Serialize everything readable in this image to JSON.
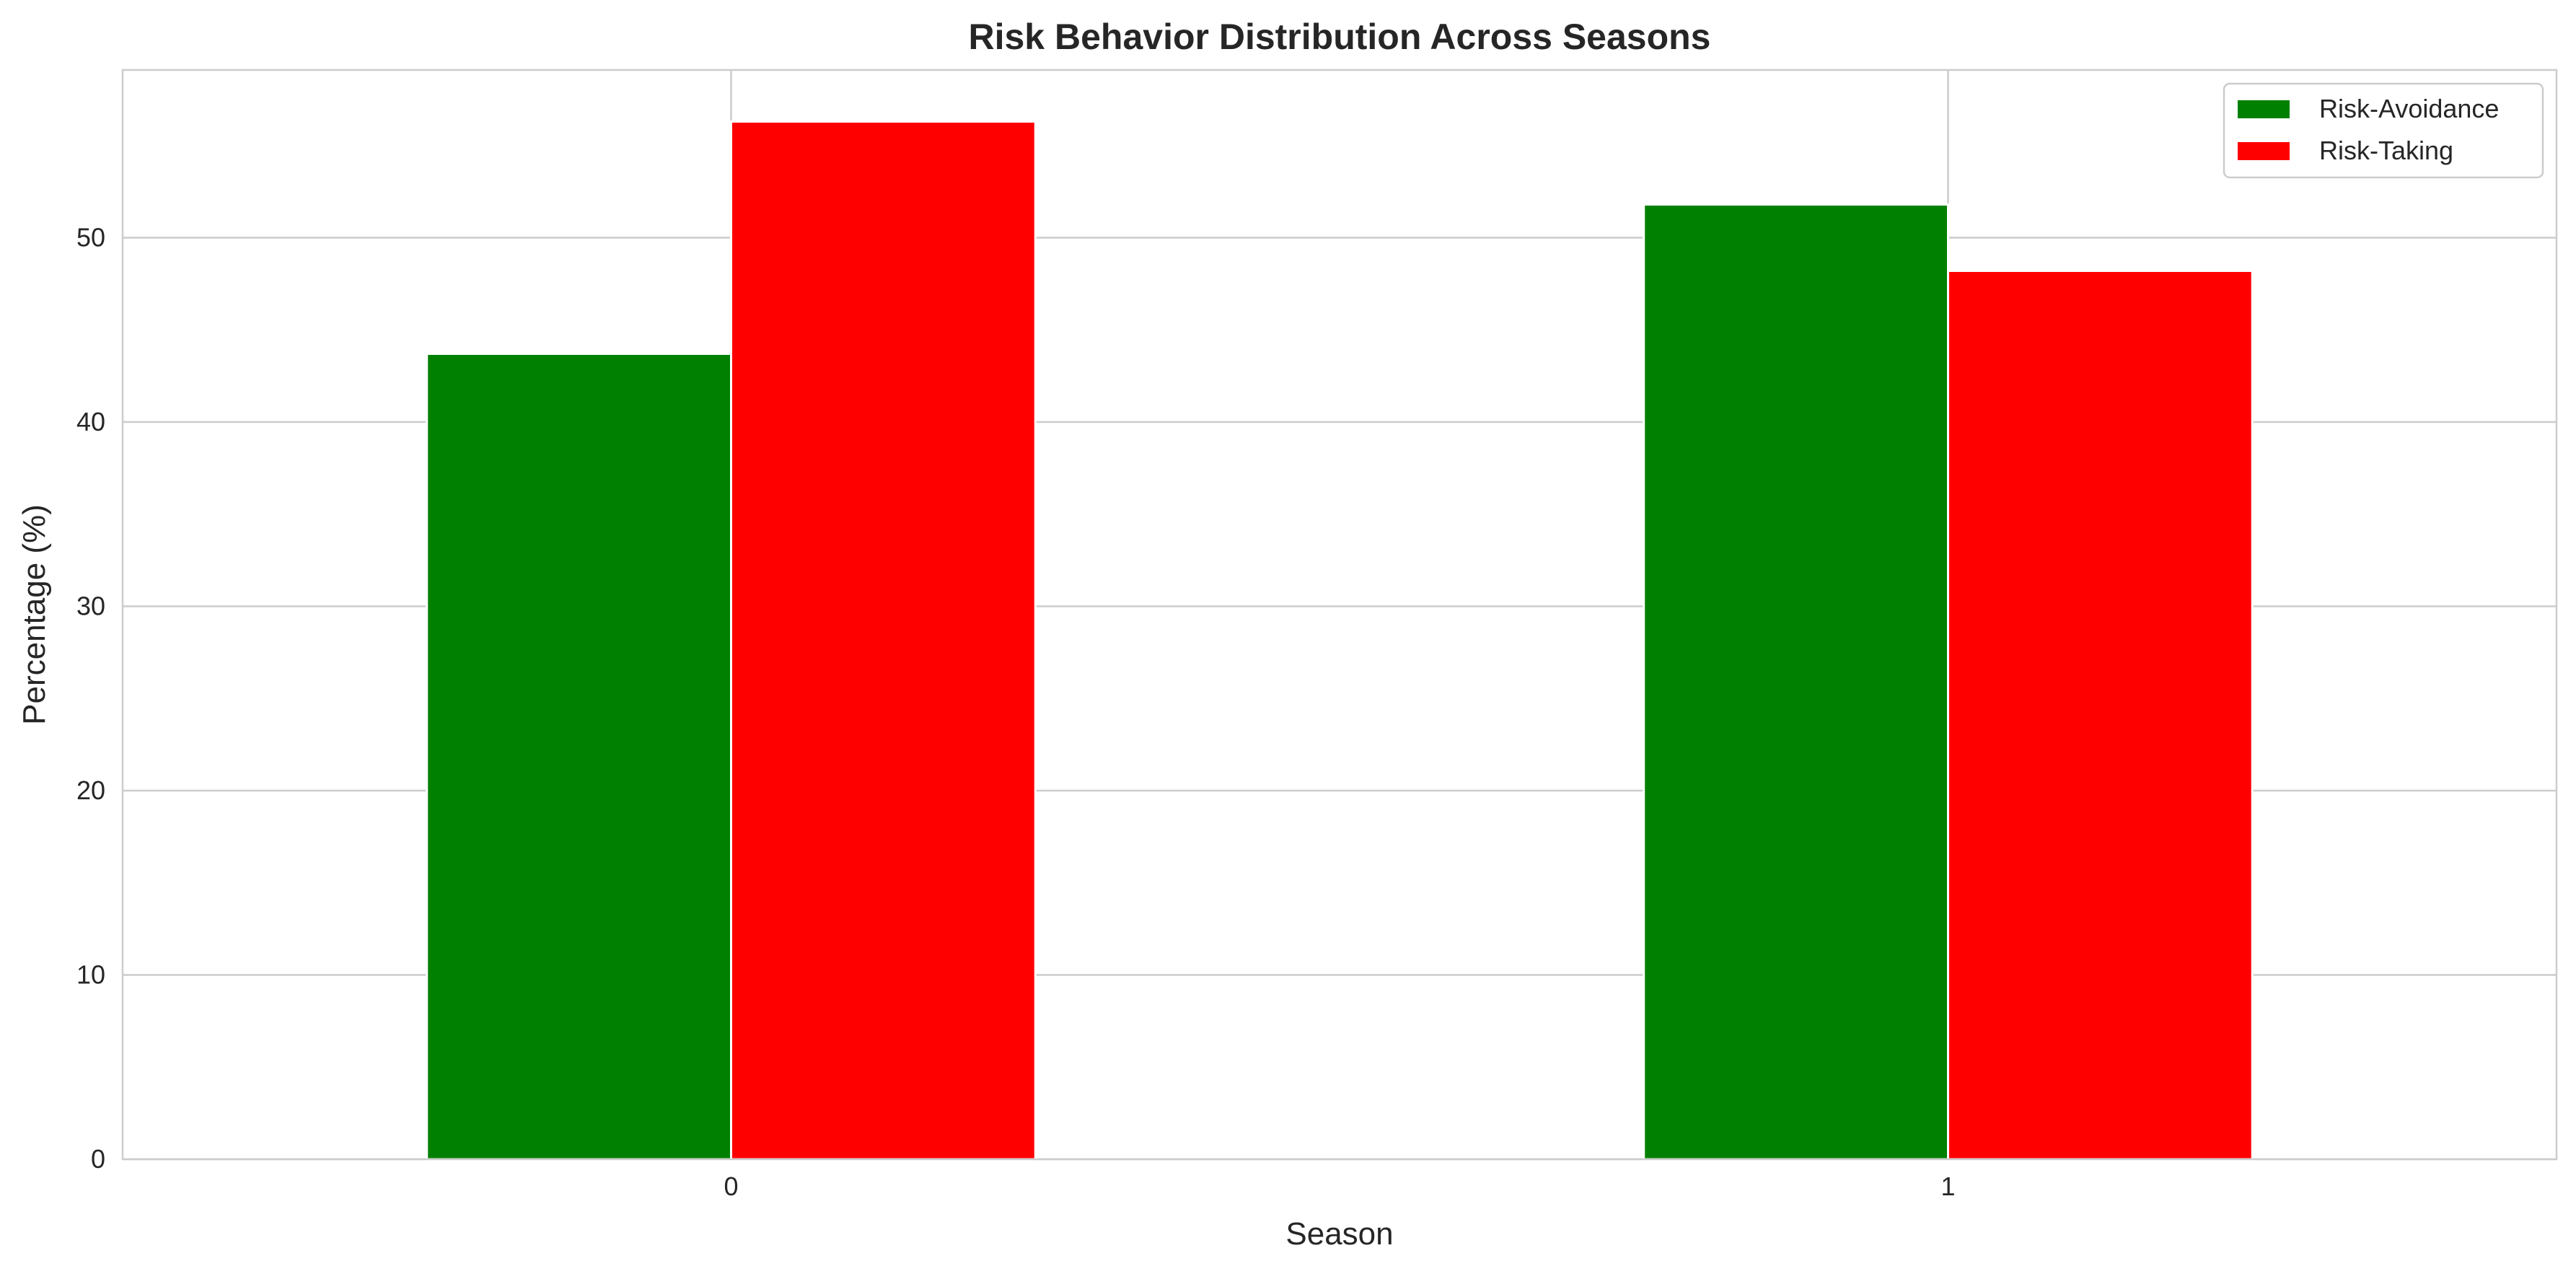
{
  "chart_data": {
    "type": "bar",
    "title": "Risk Behavior Distribution Across Seasons",
    "xlabel": "Season",
    "ylabel": "Percentage (%)",
    "categories": [
      "0",
      "1"
    ],
    "series": [
      {
        "name": "Risk-Avoidance",
        "color": "#008000",
        "values": [
          43.7,
          51.8
        ]
      },
      {
        "name": "Risk-Taking",
        "color": "#ff0000",
        "values": [
          56.3,
          48.2
        ]
      }
    ],
    "ylim": [
      0,
      59.1
    ],
    "yticks": [
      0,
      10,
      20,
      30,
      40,
      50
    ],
    "grid": true,
    "legend_position": "top-right"
  }
}
